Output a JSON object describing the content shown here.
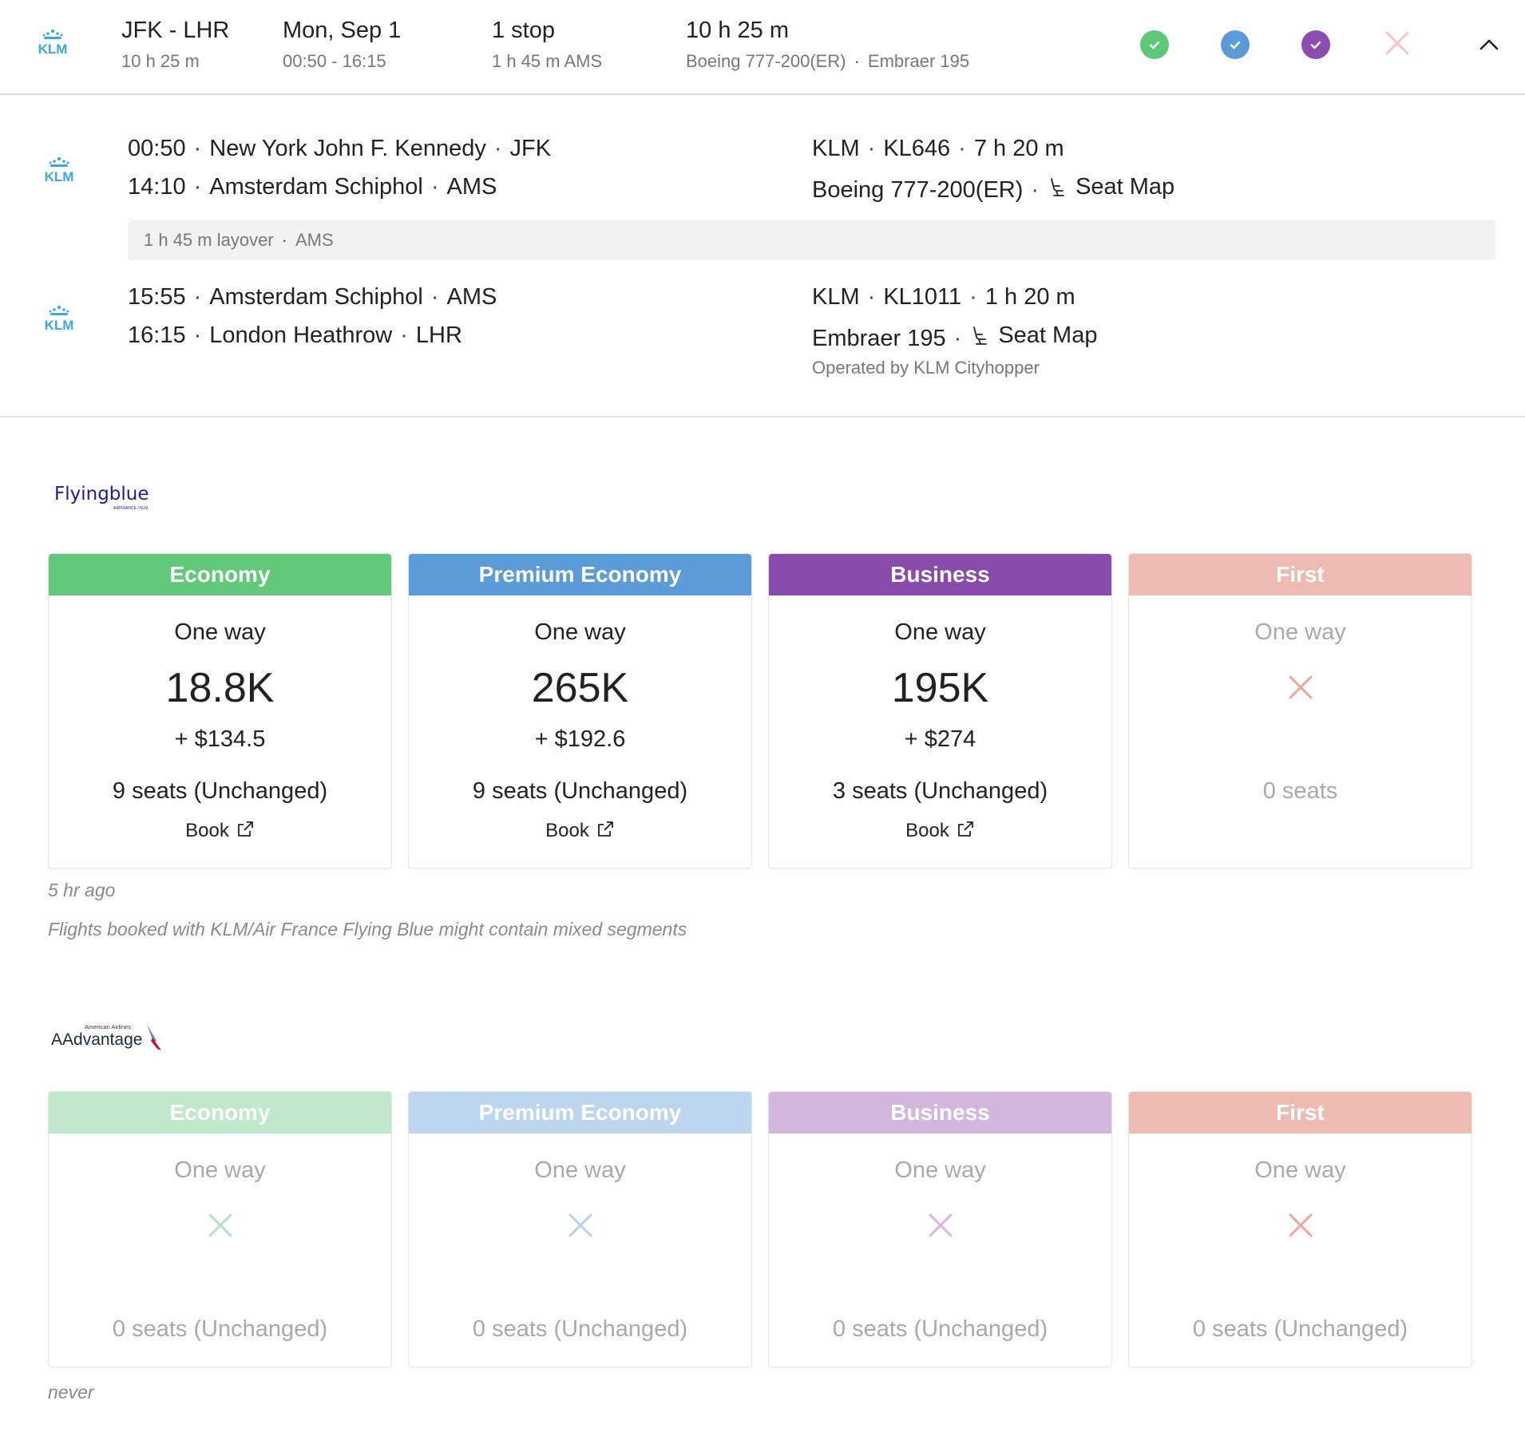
{
  "summary": {
    "route": "JFK - LHR",
    "route_duration": "10 h 25 m",
    "date": "Mon, Sep 1",
    "times": "00:50 - 16:15",
    "stops": "1 stop",
    "stop_detail": "1 h 45 m  AMS",
    "total_duration": "10 h 25 m",
    "aircraft_1": "Boeing 777-200(ER)",
    "aircraft_2": "Embraer 195",
    "status_icons": [
      {
        "name": "economy-available-check",
        "color": "#5dc878"
      },
      {
        "name": "premium-available-check",
        "color": "#5b9bd8"
      },
      {
        "name": "business-available-check",
        "color": "#8a4db0"
      },
      {
        "name": "first-unavailable-x",
        "color": "#f5c6bd"
      }
    ]
  },
  "segments": [
    {
      "dep_time": "00:50",
      "dep_airport": "New York John F. Kennedy",
      "dep_code": "JFK",
      "arr_time": "14:10",
      "arr_airport": "Amsterdam Schiphol",
      "arr_code": "AMS",
      "airline": "KLM",
      "flight": "KL646",
      "duration": "7 h 20 m",
      "aircraft": "Boeing 777-200(ER)",
      "seat_map": "Seat Map"
    },
    {
      "dep_time": "15:55",
      "dep_airport": "Amsterdam Schiphol",
      "dep_code": "AMS",
      "arr_time": "16:15",
      "arr_airport": "London Heathrow",
      "arr_code": "LHR",
      "airline": "KLM",
      "flight": "KL1011",
      "duration": "1 h 20 m",
      "aircraft": "Embraer 195",
      "seat_map": "Seat Map",
      "operated_by": "Operated by KLM Cityhopper"
    }
  ],
  "layover": {
    "duration": "1 h 45 m layover",
    "airport": "AMS"
  },
  "logos": {
    "klm": "KLM",
    "flyingblue": "Flyingblue",
    "flyingblue_sub": "AIRFRANCE / KLM",
    "aadvantage": "AAdvantage",
    "aadvantage_sub": "American Airlines"
  },
  "programs": [
    {
      "cards": [
        {
          "cabin": "Economy",
          "color": "#63c97a",
          "label": "One way",
          "miles": "18.8K",
          "tax": "+ $134.5",
          "seats": "9 seats (Unchanged)",
          "book": "Book"
        },
        {
          "cabin": "Premium Economy",
          "color": "#5a9bd8",
          "label": "One way",
          "miles": "265K",
          "tax": "+ $192.6",
          "seats": "9 seats (Unchanged)",
          "book": "Book"
        },
        {
          "cabin": "Business",
          "color": "#884aab",
          "label": "One way",
          "miles": "195K",
          "tax": "+ $274",
          "seats": "3 seats (Unchanged)",
          "book": "Book"
        },
        {
          "cabin": "First",
          "color": "#eebbb1",
          "label": "One way",
          "seats": "0 seats",
          "x_color": "#f0a59a"
        }
      ],
      "updated": "5 hr ago",
      "disclaimer": "Flights booked with KLM/Air France Flying Blue might contain mixed segments"
    },
    {
      "cards": [
        {
          "cabin": "Economy",
          "color": "#c1e8cb",
          "label": "One way",
          "seats": "0 seats (Unchanged)",
          "x_color": "#b3e3bf"
        },
        {
          "cabin": "Premium Economy",
          "color": "#bcd6ef",
          "label": "One way",
          "seats": "0 seats (Unchanged)",
          "x_color": "#b4d1ee"
        },
        {
          "cabin": "Business",
          "color": "#d2b6de",
          "label": "One way",
          "seats": "0 seats (Unchanged)",
          "x_color": "#d6b5e3"
        },
        {
          "cabin": "First",
          "color": "#eebbb1",
          "label": "One way",
          "seats": "0 seats (Unchanged)",
          "x_color": "#f0a59a"
        }
      ],
      "updated": "never"
    }
  ]
}
